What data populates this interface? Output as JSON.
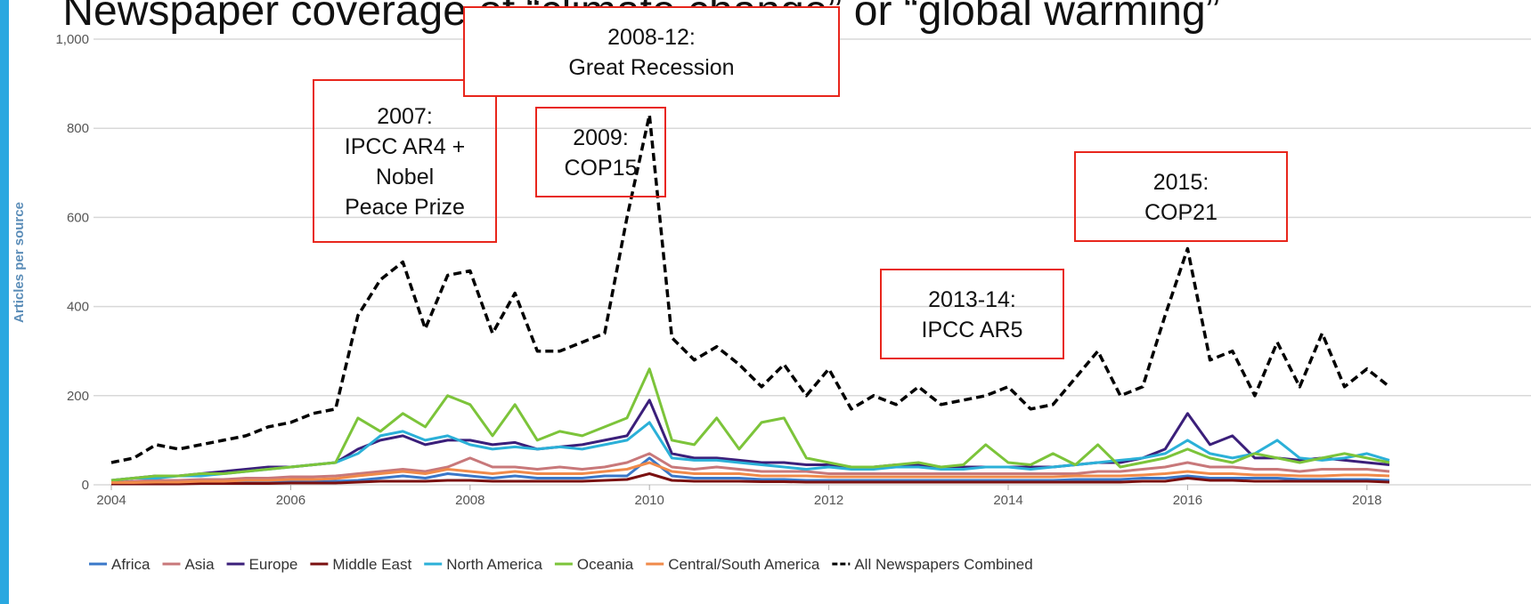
{
  "chart_data": {
    "type": "line",
    "title": "Newspaper coverage of “climate change” or “global warming”",
    "y_label": "Articles per source",
    "x": [
      2004,
      2004.25,
      2004.5,
      2004.75,
      2005,
      2005.25,
      2005.5,
      2005.75,
      2006,
      2006.25,
      2006.5,
      2006.75,
      2007,
      2007.25,
      2007.5,
      2007.75,
      2008,
      2008.25,
      2008.5,
      2008.75,
      2009,
      2009.25,
      2009.5,
      2009.75,
      2010,
      2010.25,
      2010.5,
      2010.75,
      2011,
      2011.25,
      2011.5,
      2011.75,
      2012,
      2012.25,
      2012.5,
      2012.75,
      2013,
      2013.25,
      2013.5,
      2013.75,
      2014,
      2014.25,
      2014.5,
      2014.75,
      2015,
      2015.25,
      2015.5,
      2015.75,
      2016,
      2016.25,
      2016.5,
      2016.75,
      2017,
      2017.25,
      2017.5,
      2017.75,
      2018,
      2018.25
    ],
    "xlim": [
      2004,
      2018.3
    ],
    "xticks": [
      2004,
      2006,
      2008,
      2010,
      2012,
      2014,
      2016,
      2018
    ],
    "ylim": [
      0,
      1000
    ],
    "yticks": [
      0,
      200,
      400,
      600,
      800,
      {
        "value": 1000,
        "label": "1,000"
      }
    ],
    "grid": true,
    "legend": "bottom",
    "series": [
      {
        "name": "Africa",
        "color": "#3a78c9",
        "values": [
          3,
          3,
          4,
          4,
          5,
          5,
          6,
          6,
          7,
          7,
          8,
          10,
          15,
          20,
          15,
          25,
          20,
          15,
          20,
          15,
          15,
          15,
          20,
          20,
          60,
          20,
          15,
          15,
          15,
          12,
          12,
          10,
          10,
          10,
          10,
          10,
          10,
          10,
          10,
          10,
          10,
          10,
          10,
          12,
          12,
          12,
          15,
          15,
          20,
          15,
          15,
          15,
          15,
          12,
          12,
          12,
          12,
          10
        ]
      },
      {
        "name": "Asia",
        "color": "#c8787a",
        "values": [
          5,
          8,
          10,
          10,
          12,
          12,
          15,
          15,
          18,
          18,
          20,
          25,
          30,
          35,
          30,
          40,
          60,
          40,
          40,
          35,
          40,
          35,
          40,
          50,
          70,
          40,
          35,
          40,
          35,
          30,
          30,
          30,
          25,
          25,
          25,
          25,
          25,
          25,
          25,
          25,
          25,
          25,
          25,
          25,
          30,
          30,
          35,
          40,
          50,
          40,
          40,
          35,
          35,
          30,
          35,
          35,
          35,
          30
        ]
      },
      {
        "name": "Europe",
        "color": "#3b1f7a",
        "values": [
          10,
          15,
          20,
          20,
          25,
          30,
          35,
          40,
          40,
          45,
          50,
          80,
          100,
          110,
          90,
          100,
          100,
          90,
          95,
          80,
          85,
          90,
          100,
          110,
          190,
          70,
          60,
          60,
          55,
          50,
          50,
          45,
          45,
          40,
          40,
          45,
          45,
          40,
          40,
          40,
          40,
          40,
          40,
          45,
          50,
          50,
          60,
          80,
          160,
          90,
          110,
          60,
          60,
          55,
          60,
          55,
          50,
          45
        ]
      },
      {
        "name": "Middle East",
        "color": "#7a1010",
        "values": [
          2,
          2,
          2,
          2,
          3,
          3,
          3,
          3,
          4,
          4,
          4,
          6,
          8,
          8,
          8,
          10,
          10,
          8,
          8,
          8,
          8,
          8,
          10,
          12,
          25,
          10,
          8,
          8,
          8,
          7,
          7,
          6,
          6,
          6,
          6,
          6,
          6,
          6,
          6,
          6,
          6,
          6,
          6,
          6,
          6,
          6,
          8,
          8,
          15,
          10,
          10,
          8,
          8,
          8,
          8,
          8,
          8,
          6
        ]
      },
      {
        "name": "North America",
        "color": "#2bb0d8",
        "values": [
          10,
          15,
          15,
          20,
          20,
          25,
          30,
          35,
          40,
          45,
          50,
          70,
          110,
          120,
          100,
          110,
          90,
          80,
          85,
          80,
          85,
          80,
          90,
          100,
          140,
          60,
          55,
          55,
          50,
          45,
          40,
          35,
          40,
          35,
          35,
          40,
          40,
          35,
          35,
          40,
          40,
          35,
          40,
          45,
          50,
          55,
          60,
          70,
          100,
          70,
          60,
          70,
          100,
          60,
          55,
          60,
          70,
          55
        ]
      },
      {
        "name": "Oceania",
        "color": "#7cc43a",
        "values": [
          10,
          15,
          20,
          20,
          25,
          25,
          30,
          35,
          40,
          45,
          50,
          150,
          120,
          160,
          130,
          200,
          180,
          110,
          180,
          100,
          120,
          110,
          130,
          150,
          260,
          100,
          90,
          150,
          80,
          140,
          150,
          60,
          50,
          40,
          40,
          45,
          50,
          40,
          45,
          90,
          50,
          45,
          70,
          45,
          90,
          40,
          50,
          60,
          80,
          60,
          50,
          70,
          60,
          50,
          60,
          70,
          60,
          50
        ]
      },
      {
        "name": "Central/South America",
        "color": "#f08a4a",
        "values": [
          5,
          5,
          6,
          6,
          8,
          8,
          10,
          10,
          12,
          12,
          14,
          20,
          25,
          30,
          25,
          35,
          30,
          25,
          30,
          25,
          25,
          25,
          30,
          35,
          50,
          30,
          25,
          25,
          25,
          20,
          20,
          20,
          18,
          18,
          18,
          18,
          18,
          18,
          18,
          18,
          18,
          18,
          18,
          20,
          20,
          20,
          22,
          25,
          30,
          25,
          25,
          22,
          22,
          20,
          20,
          22,
          22,
          20
        ]
      },
      {
        "name": "All Newspapers Combined",
        "color": "#000000",
        "dashed": true,
        "values": [
          50,
          60,
          90,
          80,
          90,
          100,
          110,
          130,
          140,
          160,
          170,
          380,
          460,
          500,
          350,
          470,
          480,
          340,
          430,
          300,
          300,
          320,
          340,
          600,
          830,
          330,
          280,
          310,
          270,
          220,
          270,
          200,
          260,
          170,
          200,
          180,
          220,
          180,
          190,
          200,
          220,
          170,
          180,
          240,
          300,
          200,
          220,
          380,
          530,
          280,
          300,
          200,
          320,
          220,
          340,
          220,
          260,
          220
        ]
      }
    ],
    "annotations": [
      {
        "lines": [
          "2007:",
          "IPCC AR4 +",
          "Nobel",
          "Peace Prize"
        ]
      },
      {
        "lines": [
          "2008-12:",
          "Great Recession"
        ]
      },
      {
        "lines": [
          "2009:",
          "COP15"
        ]
      },
      {
        "lines": [
          "2013-14:",
          "IPCC AR5"
        ]
      },
      {
        "lines": [
          "2015:",
          "COP21"
        ]
      }
    ]
  }
}
